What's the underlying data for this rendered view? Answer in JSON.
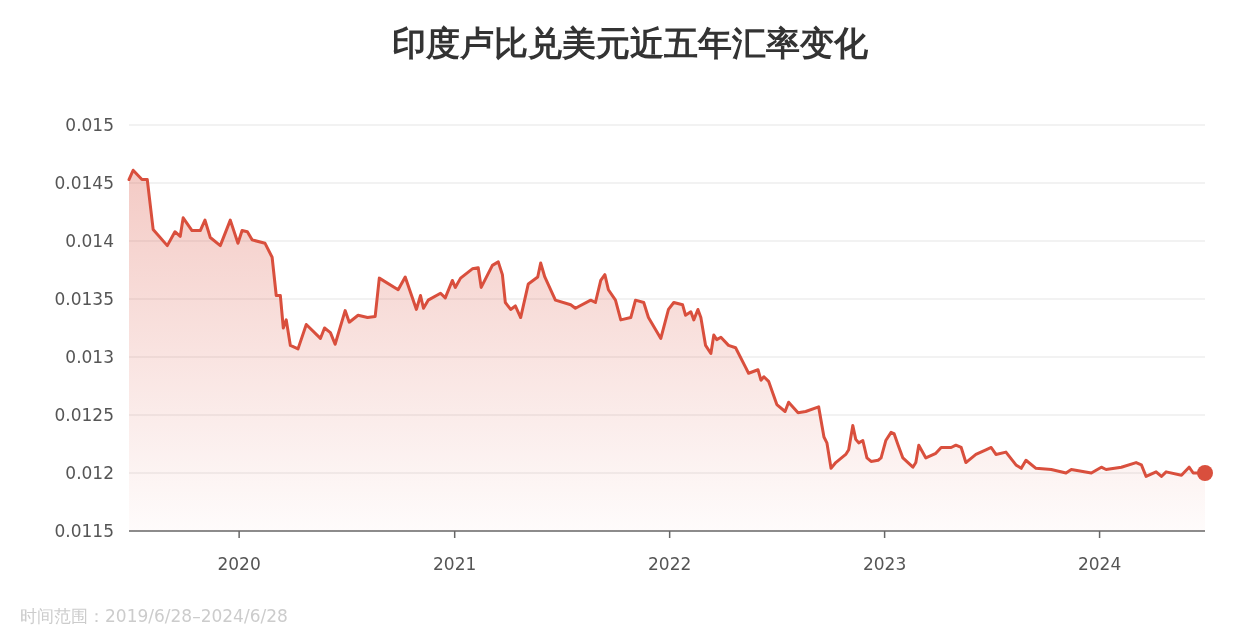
{
  "chart_data": {
    "type": "area",
    "title": "印度卢比兑美元近五年汇率变化",
    "annotations": [
      "时间范围：2019/6/28–2024/6/28"
    ],
    "xlim": [
      "2019-06-28",
      "2024-06-28"
    ],
    "xticks": [
      {
        "value": "2020-01-01",
        "label": "2020"
      },
      {
        "value": "2021-01-01",
        "label": "2021"
      },
      {
        "value": "2022-01-01",
        "label": "2022"
      },
      {
        "value": "2023-01-01",
        "label": "2023"
      },
      {
        "value": "2024-01-01",
        "label": "2024"
      }
    ],
    "ylim": [
      0.0115,
      0.015
    ],
    "yticks": [
      0.0115,
      0.012,
      0.0125,
      0.013,
      0.0135,
      0.014,
      0.0145,
      0.015
    ],
    "grid": "y",
    "series": [
      {
        "color": "#d94f3d",
        "x": [
          "2019-06-28",
          "2019-07-05",
          "2019-07-20",
          "2019-07-29",
          "2019-08-08",
          "2019-09-01",
          "2019-09-14",
          "2019-09-23",
          "2019-09-28",
          "2019-10-13",
          "2019-10-27",
          "2019-11-04",
          "2019-11-13",
          "2019-11-30",
          "2019-12-17",
          "2019-12-30",
          "2020-01-06",
          "2020-01-15",
          "2020-01-23",
          "2020-02-14",
          "2020-02-26",
          "2020-03-04",
          "2020-03-11",
          "2020-03-16",
          "2020-03-21",
          "2020-03-28",
          "2020-04-10",
          "2020-04-24",
          "2020-05-18",
          "2020-05-25",
          "2020-06-04",
          "2020-06-12",
          "2020-06-29",
          "2020-07-06",
          "2020-07-21",
          "2020-08-06",
          "2020-08-19",
          "2020-08-26",
          "2020-09-27",
          "2020-10-09",
          "2020-10-28",
          "2020-11-04",
          "2020-11-09",
          "2020-11-17",
          "2020-12-08",
          "2020-12-16",
          "2020-12-28",
          "2021-01-02",
          "2021-01-11",
          "2021-01-31",
          "2021-02-10",
          "2021-02-15",
          "2021-03-06",
          "2021-03-16",
          "2021-03-23",
          "2021-03-28",
          "2021-04-06",
          "2021-04-14",
          "2021-04-23",
          "2021-05-06",
          "2021-05-22",
          "2021-05-27",
          "2021-06-03",
          "2021-06-21",
          "2021-07-17",
          "2021-07-25",
          "2021-08-20",
          "2021-08-28",
          "2021-09-06",
          "2021-09-13",
          "2021-09-19",
          "2021-10-01",
          "2021-10-10",
          "2021-10-27",
          "2021-11-04",
          "2021-11-18",
          "2021-11-26",
          "2021-12-17",
          "2021-12-30",
          "2022-01-08",
          "2022-01-23",
          "2022-01-28",
          "2022-02-06",
          "2022-02-11",
          "2022-02-18",
          "2022-02-23",
          "2022-03-03",
          "2022-03-12",
          "2022-03-17",
          "2022-03-22",
          "2022-03-29",
          "2022-04-11",
          "2022-04-23",
          "2022-05-10",
          "2022-05-15",
          "2022-05-31",
          "2022-06-05",
          "2022-06-10",
          "2022-06-18",
          "2022-07-02",
          "2022-07-16",
          "2022-07-22",
          "2022-08-07",
          "2022-08-20",
          "2022-09-11",
          "2022-09-20",
          "2022-09-25",
          "2022-10-02",
          "2022-10-10",
          "2022-10-27",
          "2022-11-01",
          "2022-11-08",
          "2022-11-13",
          "2022-11-18",
          "2022-11-25",
          "2022-12-02",
          "2022-12-09",
          "2022-12-21",
          "2022-12-26",
          "2023-01-03",
          "2023-01-12",
          "2023-01-17",
          "2023-01-24",
          "2023-02-01",
          "2023-02-18",
          "2023-02-23",
          "2023-02-28",
          "2023-03-12",
          "2023-03-29",
          "2023-04-07",
          "2023-04-24",
          "2023-05-02",
          "2023-05-11",
          "2023-05-19",
          "2023-06-05",
          "2023-06-22",
          "2023-07-01",
          "2023-07-09",
          "2023-07-26",
          "2023-08-12",
          "2023-08-21",
          "2023-08-29",
          "2023-09-15",
          "2023-10-11",
          "2023-11-05",
          "2023-11-14",
          "2023-12-18",
          "2024-01-04",
          "2024-01-12",
          "2024-02-07",
          "2024-03-03",
          "2024-03-12",
          "2024-03-20",
          "2024-04-06",
          "2024-04-15",
          "2024-04-23",
          "2024-05-19",
          "2024-06-01",
          "2024-06-08",
          "2024-06-28"
        ],
        "values": [
          0.01453,
          0.01461,
          0.01453,
          0.01453,
          0.0141,
          0.01396,
          0.01408,
          0.01404,
          0.0142,
          0.01409,
          0.01409,
          0.01418,
          0.01403,
          0.01396,
          0.01418,
          0.01398,
          0.01409,
          0.01408,
          0.01401,
          0.01398,
          0.01386,
          0.01353,
          0.01353,
          0.01325,
          0.01332,
          0.0131,
          0.01307,
          0.01328,
          0.01316,
          0.01325,
          0.01321,
          0.01311,
          0.0134,
          0.0133,
          0.01336,
          0.01334,
          0.01335,
          0.01368,
          0.01358,
          0.01369,
          0.01341,
          0.01353,
          0.01342,
          0.01349,
          0.01355,
          0.01351,
          0.01366,
          0.0136,
          0.01368,
          0.01376,
          0.01377,
          0.0136,
          0.01379,
          0.01382,
          0.01371,
          0.01347,
          0.01341,
          0.01344,
          0.01334,
          0.01363,
          0.01369,
          0.01381,
          0.01369,
          0.01349,
          0.01345,
          0.01342,
          0.01349,
          0.01347,
          0.01366,
          0.01371,
          0.01358,
          0.01349,
          0.01332,
          0.01334,
          0.01349,
          0.01347,
          0.01334,
          0.01316,
          0.01341,
          0.01347,
          0.01345,
          0.01336,
          0.01339,
          0.01332,
          0.01341,
          0.01334,
          0.0131,
          0.01303,
          0.01319,
          0.01315,
          0.01317,
          0.0131,
          0.01308,
          0.01291,
          0.01286,
          0.01289,
          0.0128,
          0.01283,
          0.01279,
          0.01259,
          0.01253,
          0.01261,
          0.01252,
          0.01253,
          0.01257,
          0.01231,
          0.01226,
          0.01204,
          0.01209,
          0.01216,
          0.0122,
          0.01241,
          0.01229,
          0.01226,
          0.01228,
          0.01213,
          0.0121,
          0.01211,
          0.01213,
          0.01228,
          0.01235,
          0.01234,
          0.01224,
          0.01213,
          0.01205,
          0.01209,
          0.01224,
          0.01213,
          0.01217,
          0.01222,
          0.01222,
          0.01224,
          0.01222,
          0.01209,
          0.01216,
          0.0122,
          0.01222,
          0.01216,
          0.01218,
          0.01207,
          0.01204,
          0.01211,
          0.01204,
          0.01203,
          0.012,
          0.01203,
          0.012,
          0.01205,
          0.01203,
          0.01205,
          0.01209,
          0.01207,
          0.01197,
          0.01201,
          0.01197,
          0.01201,
          0.01198,
          0.01205,
          0.012,
          0.012
        ]
      }
    ]
  }
}
